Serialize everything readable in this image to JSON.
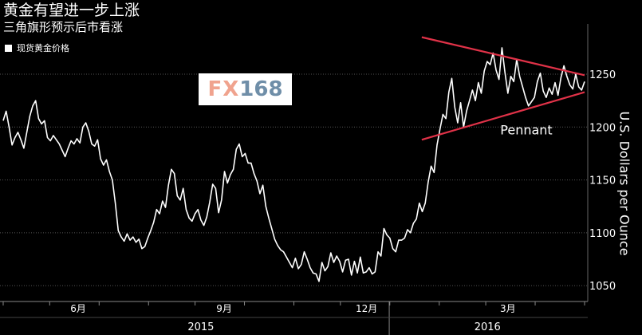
{
  "chart_data": {
    "type": "line",
    "title": "黄金有望进一步上涨",
    "subtitle": "三角旗形预示后市看涨",
    "legend": [
      "现货黄金价格"
    ],
    "ylabel": "U.S. Dollars per Ounce",
    "ylim": [
      1035,
      1290
    ],
    "yticks": [
      1050,
      1100,
      1150,
      1200,
      1250
    ],
    "month_ticks": [
      "6月",
      "9月",
      "12月",
      "3月"
    ],
    "year_labels": [
      "2015",
      "2016"
    ],
    "annotation": "Pennant",
    "series": [
      {
        "values": [
          1206,
          1215,
          1200,
          1183,
          1190,
          1195,
          1188,
          1180,
          1195,
          1210,
          1220,
          1225,
          1208,
          1203,
          1206,
          1190,
          1187,
          1192,
          1188,
          1184,
          1178,
          1172,
          1180,
          1187,
          1184,
          1189,
          1185,
          1200,
          1204,
          1196,
          1184,
          1182,
          1188,
          1170,
          1164,
          1169,
          1158,
          1150,
          1128,
          1102,
          1096,
          1092,
          1099,
          1093,
          1096,
          1091,
          1094,
          1085,
          1087,
          1095,
          1102,
          1110,
          1122,
          1118,
          1130,
          1124,
          1145,
          1160,
          1156,
          1135,
          1131,
          1142,
          1122,
          1114,
          1111,
          1118,
          1122,
          1112,
          1107,
          1115,
          1129,
          1146,
          1142,
          1119,
          1131,
          1158,
          1147,
          1155,
          1160,
          1179,
          1184,
          1172,
          1175,
          1166,
          1166,
          1156,
          1149,
          1137,
          1145,
          1125,
          1114,
          1104,
          1094,
          1088,
          1084,
          1082,
          1077,
          1072,
          1067,
          1076,
          1066,
          1070,
          1082,
          1075,
          1067,
          1062,
          1061,
          1054,
          1072,
          1064,
          1068,
          1081,
          1072,
          1078,
          1073,
          1063,
          1074,
          1075,
          1060,
          1073,
          1062,
          1077,
          1062,
          1063,
          1067,
          1061,
          1063,
          1082,
          1078,
          1104,
          1098,
          1095,
          1085,
          1082,
          1093,
          1093,
          1095,
          1103,
          1100,
          1109,
          1113,
          1128,
          1120,
          1128,
          1148,
          1163,
          1157,
          1183,
          1198,
          1212,
          1208,
          1233,
          1246,
          1219,
          1204,
          1223,
          1200,
          1215,
          1225,
          1235,
          1225,
          1242,
          1232,
          1253,
          1262,
          1259,
          1270,
          1254,
          1245,
          1275,
          1252,
          1232,
          1248,
          1243,
          1264,
          1248,
          1238,
          1228,
          1220,
          1224,
          1228,
          1243,
          1251,
          1234,
          1228,
          1237,
          1231,
          1242,
          1230,
          1247,
          1258,
          1248,
          1240,
          1236,
          1250,
          1238,
          1235,
          1243
        ]
      }
    ],
    "pennant": {
      "upper": [
        [
          0.72,
          1285
        ],
        [
          1.0,
          1249
        ]
      ],
      "lower": [
        [
          0.72,
          1188
        ],
        [
          1.0,
          1233
        ]
      ]
    },
    "colors": {
      "line": "#ffffff",
      "pennant": "#e03248",
      "grid": "#555555",
      "background": "#000000",
      "watermark_fx": "#f0a38e",
      "watermark_num": "#6f8ea8"
    }
  },
  "watermark": {
    "fx": "FX",
    "num": "168"
  }
}
